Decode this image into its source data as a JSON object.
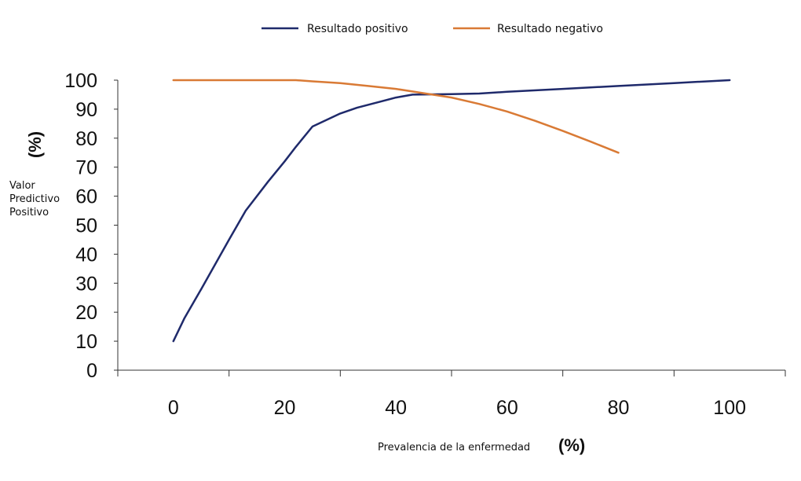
{
  "chart_data": {
    "type": "line",
    "title": "",
    "xlabel": "Prevalencia de la enfermedad",
    "xlabel_unit": "(%)",
    "ylabel_lines": [
      "Valor",
      "Predictivo",
      "Positivo"
    ],
    "ylabel_unit": "(%)",
    "xlim": [
      -10,
      110
    ],
    "ylim": [
      0,
      100
    ],
    "x_ticks": [
      0,
      20,
      40,
      60,
      80,
      100
    ],
    "y_ticks": [
      0,
      10,
      20,
      30,
      40,
      50,
      60,
      70,
      80,
      90,
      100
    ],
    "grid": false,
    "legend_position": "top",
    "series": [
      {
        "name": "Resultado positivo",
        "color": "#1f2a6b",
        "x": [
          0,
          2,
          5,
          10,
          13,
          17,
          20,
          22,
          25,
          30,
          33,
          37,
          40,
          43,
          50,
          55,
          60,
          70,
          80,
          90,
          100
        ],
        "y": [
          10,
          18,
          28,
          45,
          55,
          65,
          72,
          77,
          84,
          88.5,
          90.5,
          92.5,
          94,
          95,
          95.2,
          95.4,
          96,
          97,
          98,
          99,
          100
        ]
      },
      {
        "name": "Resultado negativo",
        "color": "#d97a35",
        "x": [
          0,
          10,
          20,
          22,
          25,
          30,
          35,
          40,
          45,
          50,
          55,
          60,
          65,
          70,
          75,
          80
        ],
        "y": [
          100,
          100,
          100,
          100,
          99.6,
          99,
          98,
          97,
          95.5,
          94,
          91.8,
          89.2,
          86,
          82.5,
          78.8,
          75
        ]
      }
    ]
  }
}
